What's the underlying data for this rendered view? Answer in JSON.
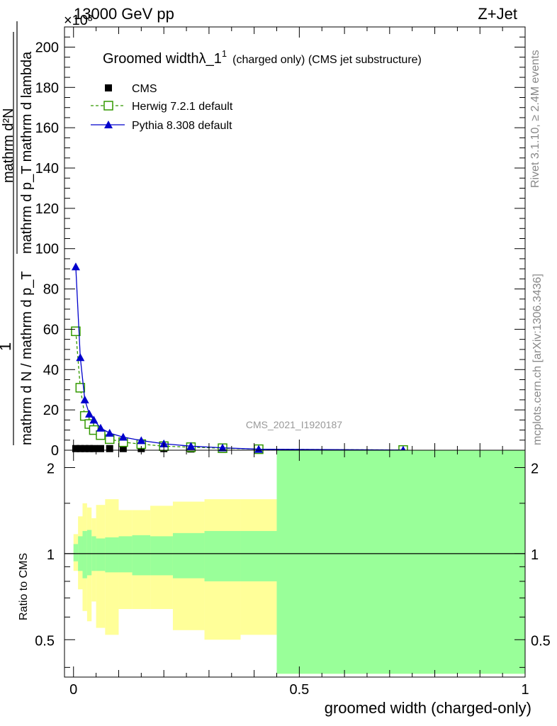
{
  "header": {
    "left": "13000 GeV pp",
    "right": "Z+Jet",
    "exponent": "×10³"
  },
  "side_labels": {
    "rivet": "Rivet 3.1.10, ≥ 2.4M events",
    "mcplots": "mcplots.cern.ch [arXiv:1306.3436]"
  },
  "watermark": "CMS_2021_I1920187",
  "legend": {
    "title_main": "Groomed widthλ_1",
    "title_sup": "1",
    "title_rest": "(charged only) (CMS jet substructure)"
  },
  "ylabel_main": {
    "numerator": "mathrm d²N",
    "denominator": "mathrm d p_T mathrm d lambda",
    "outer_num": "1",
    "outer_den": "mathrm d N / mathrm d p_T"
  },
  "xlabel": "groomed width (charged-only)",
  "ratio_ylabel": "Ratio to CMS",
  "colors": {
    "cms": "#000000",
    "herwig": "#339900",
    "pythia": "#0000cc",
    "band_mc": "#99ff99",
    "band_data": "#ffff99"
  },
  "chart_data": [
    {
      "type": "line",
      "title": "Groomed widthλ_1^1 (charged only) (CMS jet substructure)",
      "xlabel": "",
      "ylabel": "1 / (mathrm d N / mathrm d p_T) · mathrm d²N / (mathrm d p_T mathrm d lambda)",
      "y_multiplier": "×10³",
      "xlim": [
        -0.02,
        1.0
      ],
      "ylim": [
        0,
        210
      ],
      "yticks": [
        0,
        20,
        40,
        60,
        80,
        100,
        120,
        140,
        160,
        180,
        200
      ],
      "series": [
        {
          "name": "CMS",
          "marker": "filled-square",
          "x": [
            0.005,
            0.015,
            0.025,
            0.035,
            0.045,
            0.06,
            0.08,
            0.11,
            0.15,
            0.2,
            0.26,
            0.33,
            0.41,
            0.73
          ],
          "values": [
            0.8,
            0.8,
            0.8,
            0.8,
            0.8,
            0.8,
            0.8,
            0.8,
            0.8,
            0.8,
            0.6,
            0.4,
            0.3,
            0.1
          ]
        },
        {
          "name": "Herwig 7.2.1 default",
          "marker": "open-square",
          "x": [
            0.005,
            0.015,
            0.025,
            0.035,
            0.045,
            0.06,
            0.08,
            0.11,
            0.15,
            0.2,
            0.26,
            0.33,
            0.41,
            0.73
          ],
          "values": [
            59,
            31,
            17,
            13,
            10,
            7.5,
            5.5,
            4,
            3,
            2,
            1.5,
            1,
            0.5,
            0.1
          ]
        },
        {
          "name": "Pythia 8.308 default",
          "marker": "filled-triangle",
          "x": [
            0.005,
            0.015,
            0.025,
            0.035,
            0.045,
            0.06,
            0.08,
            0.11,
            0.15,
            0.2,
            0.26,
            0.33,
            0.41,
            0.73
          ],
          "values": [
            91,
            46,
            25,
            18,
            15,
            11,
            8.5,
            6.5,
            4.8,
            3.2,
            2,
            1.2,
            0.5,
            0.1
          ]
        }
      ]
    },
    {
      "type": "area",
      "ylabel": "Ratio to CMS",
      "xlabel": "groomed width (charged-only)",
      "xlim": [
        -0.02,
        1.0
      ],
      "ylim": [
        0.37,
        2.3
      ],
      "log_y": true,
      "xticks": [
        0,
        0.5,
        1
      ],
      "yticks": [
        0.5,
        1,
        2
      ],
      "reference_line": 1,
      "bins": [
        0,
        0.01,
        0.02,
        0.03,
        0.04,
        0.05,
        0.07,
        0.1,
        0.13,
        0.17,
        0.22,
        0.29,
        0.37,
        0.45,
        1.0
      ],
      "series": [
        {
          "name": "CMS total uncertainty",
          "lower": [
            0.87,
            0.75,
            0.63,
            0.58,
            0.68,
            0.55,
            0.52,
            0.64,
            0.64,
            0.64,
            0.54,
            0.5,
            0.52,
            0.38
          ],
          "upper": [
            1.17,
            1.35,
            1.5,
            1.45,
            1.33,
            1.48,
            1.55,
            1.42,
            1.42,
            1.47,
            1.52,
            1.55,
            1.55,
            2.3
          ]
        },
        {
          "name": "CMS statistical uncertainty",
          "lower": [
            0.94,
            0.87,
            0.82,
            0.84,
            0.87,
            0.87,
            0.86,
            0.86,
            0.84,
            0.84,
            0.82,
            0.8,
            0.8,
            0.38
          ],
          "upper": [
            1.08,
            1.15,
            1.2,
            1.21,
            1.15,
            1.13,
            1.14,
            1.15,
            1.16,
            1.15,
            1.18,
            1.2,
            1.2,
            2.3
          ]
        }
      ]
    }
  ]
}
